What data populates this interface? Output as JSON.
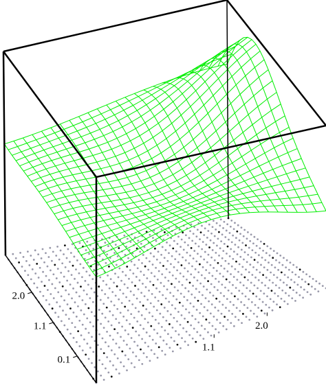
{
  "chart_data": {
    "type": "surface",
    "ylim": [
      3.1,
      -0.7
    ],
    "yticks": [
      {
        "value": 2.0,
        "label": "2.0"
      },
      {
        "value": 1.1,
        "label": "1.1"
      },
      {
        "value": 0.1,
        "label": "0.1"
      }
    ],
    "xlim": [
      -0.9,
      3.0
    ],
    "xticks": [
      {
        "value": 1.1,
        "label": "1.1"
      },
      {
        "value": 2.0,
        "label": "2.0"
      }
    ],
    "color": "#00ee00"
  }
}
